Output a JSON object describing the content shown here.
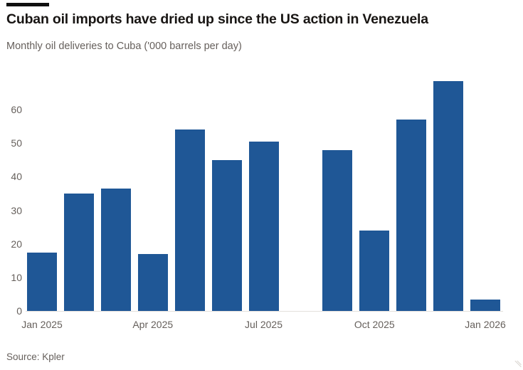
{
  "header": {
    "title": "Cuban oil imports have dried up since the US action in Venezuela",
    "subtitle": "Monthly oil deliveries to Cuba ('000 barrels per day)"
  },
  "footer": {
    "source": "Source: Kpler"
  },
  "colors": {
    "bar": "#1f5796",
    "title_text": "#181513",
    "muted_text": "#66605c",
    "kicker": "#101010"
  },
  "chart_data": {
    "type": "bar",
    "title": "Cuban oil imports have dried up since the US action in Venezuela",
    "subtitle": "Monthly oil deliveries to Cuba ('000 barrels per day)",
    "source": "Source: Kpler",
    "categories": [
      "Jan 2025",
      "Feb 2025",
      "Mar 2025",
      "Apr 2025",
      "May 2025",
      "Jun 2025",
      "Jul 2025",
      "Aug 2025",
      "Sep 2025",
      "Oct 2025",
      "Nov 2025",
      "Dec 2025",
      "Jan 2026"
    ],
    "values": [
      17.5,
      35,
      36.5,
      17,
      54,
      45,
      50.5,
      0,
      48,
      24,
      57,
      68.5,
      3.5
    ],
    "xlabel": "",
    "ylabel": "'000 barrels per day",
    "ylim": [
      0,
      70
    ],
    "yticks": [
      0,
      10,
      20,
      30,
      40,
      50,
      60
    ],
    "x_ticks": [
      {
        "index": 0,
        "label": "Jan 2025"
      },
      {
        "index": 3,
        "label": "Apr 2025"
      },
      {
        "index": 6,
        "label": "Jul 2025"
      },
      {
        "index": 9,
        "label": "Oct 2025"
      },
      {
        "index": 12,
        "label": "Jan 2026"
      }
    ],
    "grid": false,
    "legend": false,
    "bar_color": "#1f5796"
  }
}
